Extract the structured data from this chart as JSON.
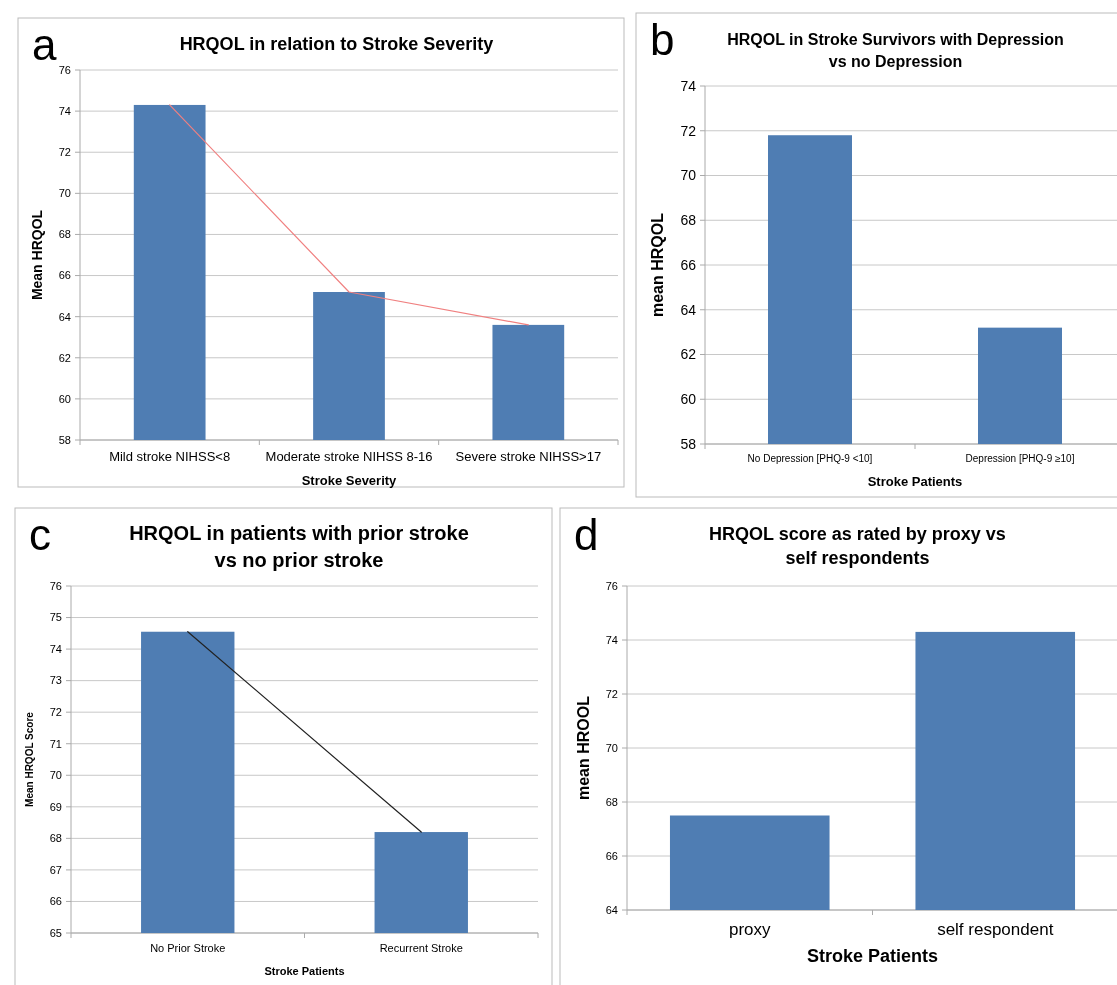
{
  "chart_data": [
    {
      "type": "bar",
      "title": "HRQOL in relation to Stroke Severity",
      "xlabel": "Stroke Severity",
      "ylabel": "Mean HRQOL",
      "annotations": [
        "a"
      ],
      "categories": [
        "Mild stroke NIHSS<8",
        "Moderate stroke NIHSS 8-16",
        "Severe stroke NIHSS>17"
      ],
      "series": [
        {
          "color": "#4f7db3",
          "values": [
            74.3,
            65.2,
            63.6
          ]
        },
        {
          "type": "line",
          "color": "#f08080",
          "values": [
            74.3,
            65.2,
            63.6
          ]
        }
      ],
      "ylim": [
        58,
        76
      ],
      "yticks": [
        58,
        60,
        62,
        64,
        66,
        68,
        70,
        72,
        74,
        76
      ],
      "grid": "y"
    },
    {
      "type": "bar",
      "title": "HRQOL in Stroke Survivors with Depression vs no Depression",
      "xlabel": "Stroke Patients",
      "ylabel": "mean HRQOL",
      "annotations": [
        "b"
      ],
      "categories": [
        "No Depression [PHQ-9 <10]",
        "Depression [PHQ-9 ≥10]"
      ],
      "series": [
        {
          "color": "#4f7db3",
          "values": [
            71.8,
            63.2
          ]
        }
      ],
      "ylim": [
        58,
        74
      ],
      "yticks": [
        58,
        60,
        62,
        64,
        66,
        68,
        70,
        72,
        74
      ],
      "grid": "y"
    },
    {
      "type": "bar",
      "title": "HRQOL in patients with prior stroke vs no prior stroke",
      "xlabel": "Stroke Patients",
      "ylabel": "Mean HRQOL Score",
      "annotations": [
        "c"
      ],
      "categories": [
        "No Prior Stroke",
        "Recurrent Stroke"
      ],
      "series": [
        {
          "color": "#4f7db3",
          "values": [
            74.55,
            68.2
          ]
        },
        {
          "type": "line",
          "color": "#222222",
          "values": [
            74.55,
            68.2
          ]
        }
      ],
      "ylim": [
        65,
        76
      ],
      "yticks": [
        65,
        66,
        67,
        68,
        69,
        70,
        71,
        72,
        73,
        74,
        75,
        76
      ],
      "grid": "y"
    },
    {
      "type": "bar",
      "title": "HRQOL score as rated by proxy vs self respondents",
      "xlabel": "Stroke Patients",
      "ylabel": "mean HROOL",
      "annotations": [
        "d"
      ],
      "categories": [
        "proxy",
        "self respondent"
      ],
      "series": [
        {
          "color": "#4f7db3",
          "values": [
            67.5,
            74.3
          ]
        }
      ],
      "ylim": [
        64,
        76
      ],
      "yticks": [
        64,
        66,
        68,
        70,
        72,
        74,
        76
      ],
      "grid": "y"
    }
  ]
}
